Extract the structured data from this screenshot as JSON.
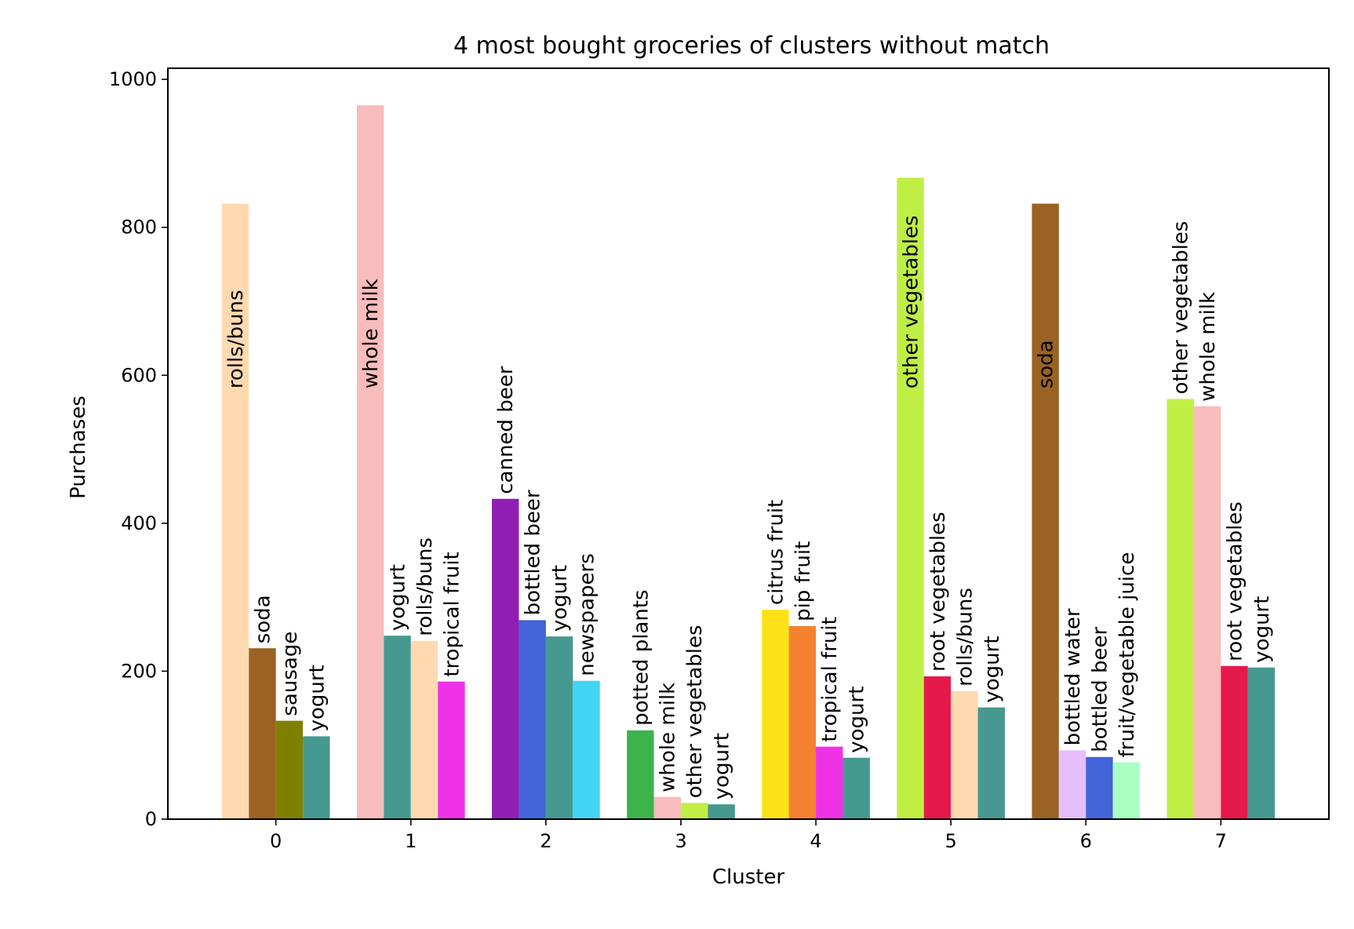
{
  "chart_data": {
    "type": "bar",
    "title": "4 most bought groceries of clusters without match",
    "xlabel": "Cluster",
    "ylabel": "Purchases",
    "ylim": [
      0,
      1015
    ],
    "yticks": [
      0,
      200,
      400,
      600,
      800,
      1000
    ],
    "grid": false,
    "legend": "none",
    "clusters": [
      {
        "cluster": "0",
        "bars": [
          {
            "label": "rolls/buns",
            "value": 832,
            "color": "#FFDAB0",
            "label_inside": true
          },
          {
            "label": "soda",
            "value": 231,
            "color": "#9A6324"
          },
          {
            "label": "sausage",
            "value": 133,
            "color": "#808000"
          },
          {
            "label": "yogurt",
            "value": 112,
            "color": "#469990"
          }
        ]
      },
      {
        "cluster": "1",
        "bars": [
          {
            "label": "whole milk",
            "value": 965,
            "color": "#F8BCBC",
            "label_inside": true
          },
          {
            "label": "yogurt",
            "value": 248,
            "color": "#469990"
          },
          {
            "label": "rolls/buns",
            "value": 241,
            "color": "#FFDAB0"
          },
          {
            "label": "tropical fruit",
            "value": 186,
            "color": "#F032E6"
          }
        ]
      },
      {
        "cluster": "2",
        "bars": [
          {
            "label": "canned beer",
            "value": 433,
            "color": "#911EB4"
          },
          {
            "label": "bottled beer",
            "value": 269,
            "color": "#4363D8"
          },
          {
            "label": "yogurt",
            "value": 247,
            "color": "#469990"
          },
          {
            "label": "newspapers",
            "value": 187,
            "color": "#42D4F4"
          }
        ]
      },
      {
        "cluster": "3",
        "bars": [
          {
            "label": "potted plants",
            "value": 120,
            "color": "#3CB44B"
          },
          {
            "label": "whole milk",
            "value": 30,
            "color": "#F8BCBC"
          },
          {
            "label": "other vegetables",
            "value": 22,
            "color": "#BFEF45"
          },
          {
            "label": "yogurt",
            "value": 20,
            "color": "#469990"
          }
        ]
      },
      {
        "cluster": "4",
        "bars": [
          {
            "label": "citrus fruit",
            "value": 283,
            "color": "#FFE119"
          },
          {
            "label": "pip fruit",
            "value": 261,
            "color": "#F58231"
          },
          {
            "label": "tropical fruit",
            "value": 98,
            "color": "#F032E6"
          },
          {
            "label": "yogurt",
            "value": 83,
            "color": "#469990"
          }
        ]
      },
      {
        "cluster": "5",
        "bars": [
          {
            "label": "other vegetables",
            "value": 867,
            "color": "#BFEF45",
            "label_inside": true
          },
          {
            "label": "root vegetables",
            "value": 193,
            "color": "#E6194B"
          },
          {
            "label": "rolls/buns",
            "value": 173,
            "color": "#FFDAB0"
          },
          {
            "label": "yogurt",
            "value": 151,
            "color": "#469990"
          }
        ]
      },
      {
        "cluster": "6",
        "bars": [
          {
            "label": "soda",
            "value": 832,
            "color": "#9A6324",
            "label_inside": true
          },
          {
            "label": "bottled water",
            "value": 93,
            "color": "#E6BEFF"
          },
          {
            "label": "bottled beer",
            "value": 84,
            "color": "#4363D8"
          },
          {
            "label": "fruit/vegetable juice",
            "value": 77,
            "color": "#AAFFC3"
          }
        ]
      },
      {
        "cluster": "7",
        "bars": [
          {
            "label": "other vegetables",
            "value": 568,
            "color": "#BFEF45"
          },
          {
            "label": "whole milk",
            "value": 558,
            "color": "#F8BCBC"
          },
          {
            "label": "root vegetables",
            "value": 207,
            "color": "#E6194B"
          },
          {
            "label": "yogurt",
            "value": 205,
            "color": "#469990"
          }
        ]
      }
    ]
  }
}
